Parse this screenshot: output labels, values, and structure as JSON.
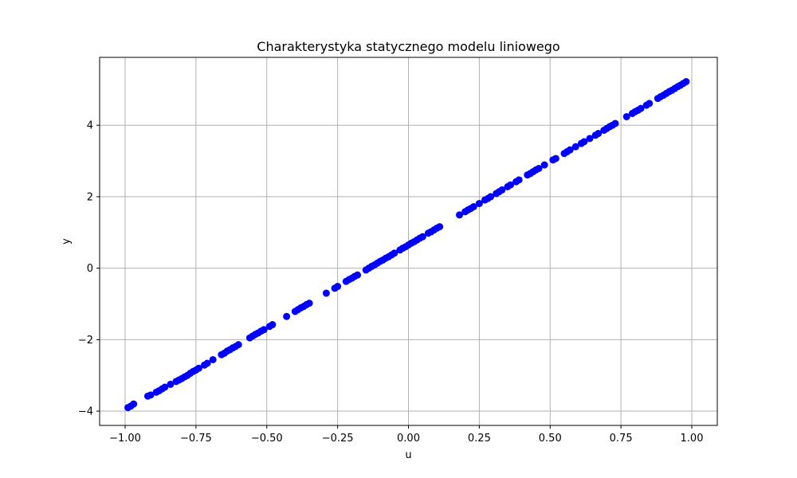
{
  "chart_data": {
    "type": "scatter",
    "title": "Charakterystyka statycznego modelu liniowego",
    "xlabel": "u",
    "ylabel": "y",
    "xlim": [
      -1.09,
      1.09
    ],
    "ylim": [
      -4.4,
      5.9
    ],
    "grid": true,
    "x_ticks": [
      -1.0,
      -0.75,
      -0.5,
      -0.25,
      0.0,
      0.25,
      0.5,
      0.75,
      1.0
    ],
    "x_tick_labels": [
      "−1.00",
      "−0.75",
      "−0.50",
      "−0.25",
      "0.00",
      "0.25",
      "0.50",
      "0.75",
      "1.00"
    ],
    "y_ticks": [
      -4,
      -2,
      0,
      2,
      4
    ],
    "y_tick_labels": [
      "−4",
      "−2",
      "0",
      "2",
      "4"
    ],
    "series": [
      {
        "color": "#0000ff",
        "x": [
          -0.99,
          -0.98,
          -0.97,
          -0.92,
          -0.91,
          -0.89,
          -0.88,
          -0.87,
          -0.86,
          -0.84,
          -0.82,
          -0.81,
          -0.8,
          -0.79,
          -0.78,
          -0.77,
          -0.76,
          -0.75,
          -0.74,
          -0.72,
          -0.71,
          -0.69,
          -0.66,
          -0.65,
          -0.64,
          -0.63,
          -0.62,
          -0.61,
          -0.6,
          -0.56,
          -0.55,
          -0.54,
          -0.53,
          -0.52,
          -0.51,
          -0.49,
          -0.48,
          -0.43,
          -0.4,
          -0.39,
          -0.38,
          -0.37,
          -0.36,
          -0.35,
          -0.29,
          -0.26,
          -0.25,
          -0.22,
          -0.21,
          -0.2,
          -0.19,
          -0.18,
          -0.15,
          -0.14,
          -0.13,
          -0.12,
          -0.11,
          -0.1,
          -0.09,
          -0.08,
          -0.07,
          -0.06,
          -0.05,
          -0.03,
          -0.02,
          -0.01,
          0.0,
          0.01,
          0.02,
          0.03,
          0.04,
          0.05,
          0.07,
          0.08,
          0.09,
          0.1,
          0.11,
          0.18,
          0.2,
          0.21,
          0.22,
          0.23,
          0.25,
          0.27,
          0.28,
          0.29,
          0.31,
          0.32,
          0.33,
          0.35,
          0.36,
          0.38,
          0.39,
          0.42,
          0.43,
          0.44,
          0.45,
          0.46,
          0.48,
          0.51,
          0.52,
          0.55,
          0.56,
          0.57,
          0.59,
          0.61,
          0.62,
          0.64,
          0.66,
          0.67,
          0.69,
          0.7,
          0.71,
          0.72,
          0.73,
          0.77,
          0.79,
          0.8,
          0.81,
          0.82,
          0.84,
          0.85,
          0.88,
          0.89,
          0.9,
          0.91,
          0.92,
          0.93,
          0.94,
          0.95,
          0.96,
          0.97,
          0.98
        ],
        "y": [
          -3.9,
          -3.86,
          -3.8,
          -3.58,
          -3.55,
          -3.47,
          -3.43,
          -3.38,
          -3.33,
          -3.25,
          -3.17,
          -3.13,
          -3.09,
          -3.04,
          -3.0,
          -2.94,
          -2.89,
          -2.85,
          -2.8,
          -2.71,
          -2.66,
          -2.56,
          -2.42,
          -2.38,
          -2.32,
          -2.28,
          -2.23,
          -2.19,
          -2.14,
          -1.95,
          -1.9,
          -1.85,
          -1.81,
          -1.76,
          -1.72,
          -1.63,
          -1.58,
          -1.35,
          -1.21,
          -1.16,
          -1.11,
          -1.07,
          -1.02,
          -0.98,
          -0.7,
          -0.56,
          -0.51,
          -0.37,
          -0.32,
          -0.28,
          -0.23,
          -0.19,
          -0.05,
          0.0,
          0.05,
          0.09,
          0.14,
          0.19,
          0.23,
          0.28,
          0.32,
          0.37,
          0.42,
          0.51,
          0.56,
          0.6,
          0.65,
          0.7,
          0.74,
          0.79,
          0.84,
          0.88,
          0.98,
          1.02,
          1.07,
          1.12,
          1.16,
          1.49,
          1.58,
          1.63,
          1.67,
          1.72,
          1.81,
          1.91,
          1.95,
          2.0,
          2.09,
          2.14,
          2.19,
          2.28,
          2.33,
          2.42,
          2.47,
          2.61,
          2.65,
          2.7,
          2.75,
          2.79,
          2.89,
          3.03,
          3.07,
          3.21,
          3.26,
          3.31,
          3.4,
          3.49,
          3.54,
          3.63,
          3.72,
          3.77,
          3.86,
          3.91,
          3.96,
          4.0,
          4.05,
          4.24,
          4.33,
          4.38,
          4.42,
          4.47,
          4.56,
          4.61,
          4.75,
          4.8,
          4.84,
          4.89,
          4.94,
          4.98,
          5.03,
          5.08,
          5.12,
          5.17,
          5.22
        ]
      }
    ]
  }
}
